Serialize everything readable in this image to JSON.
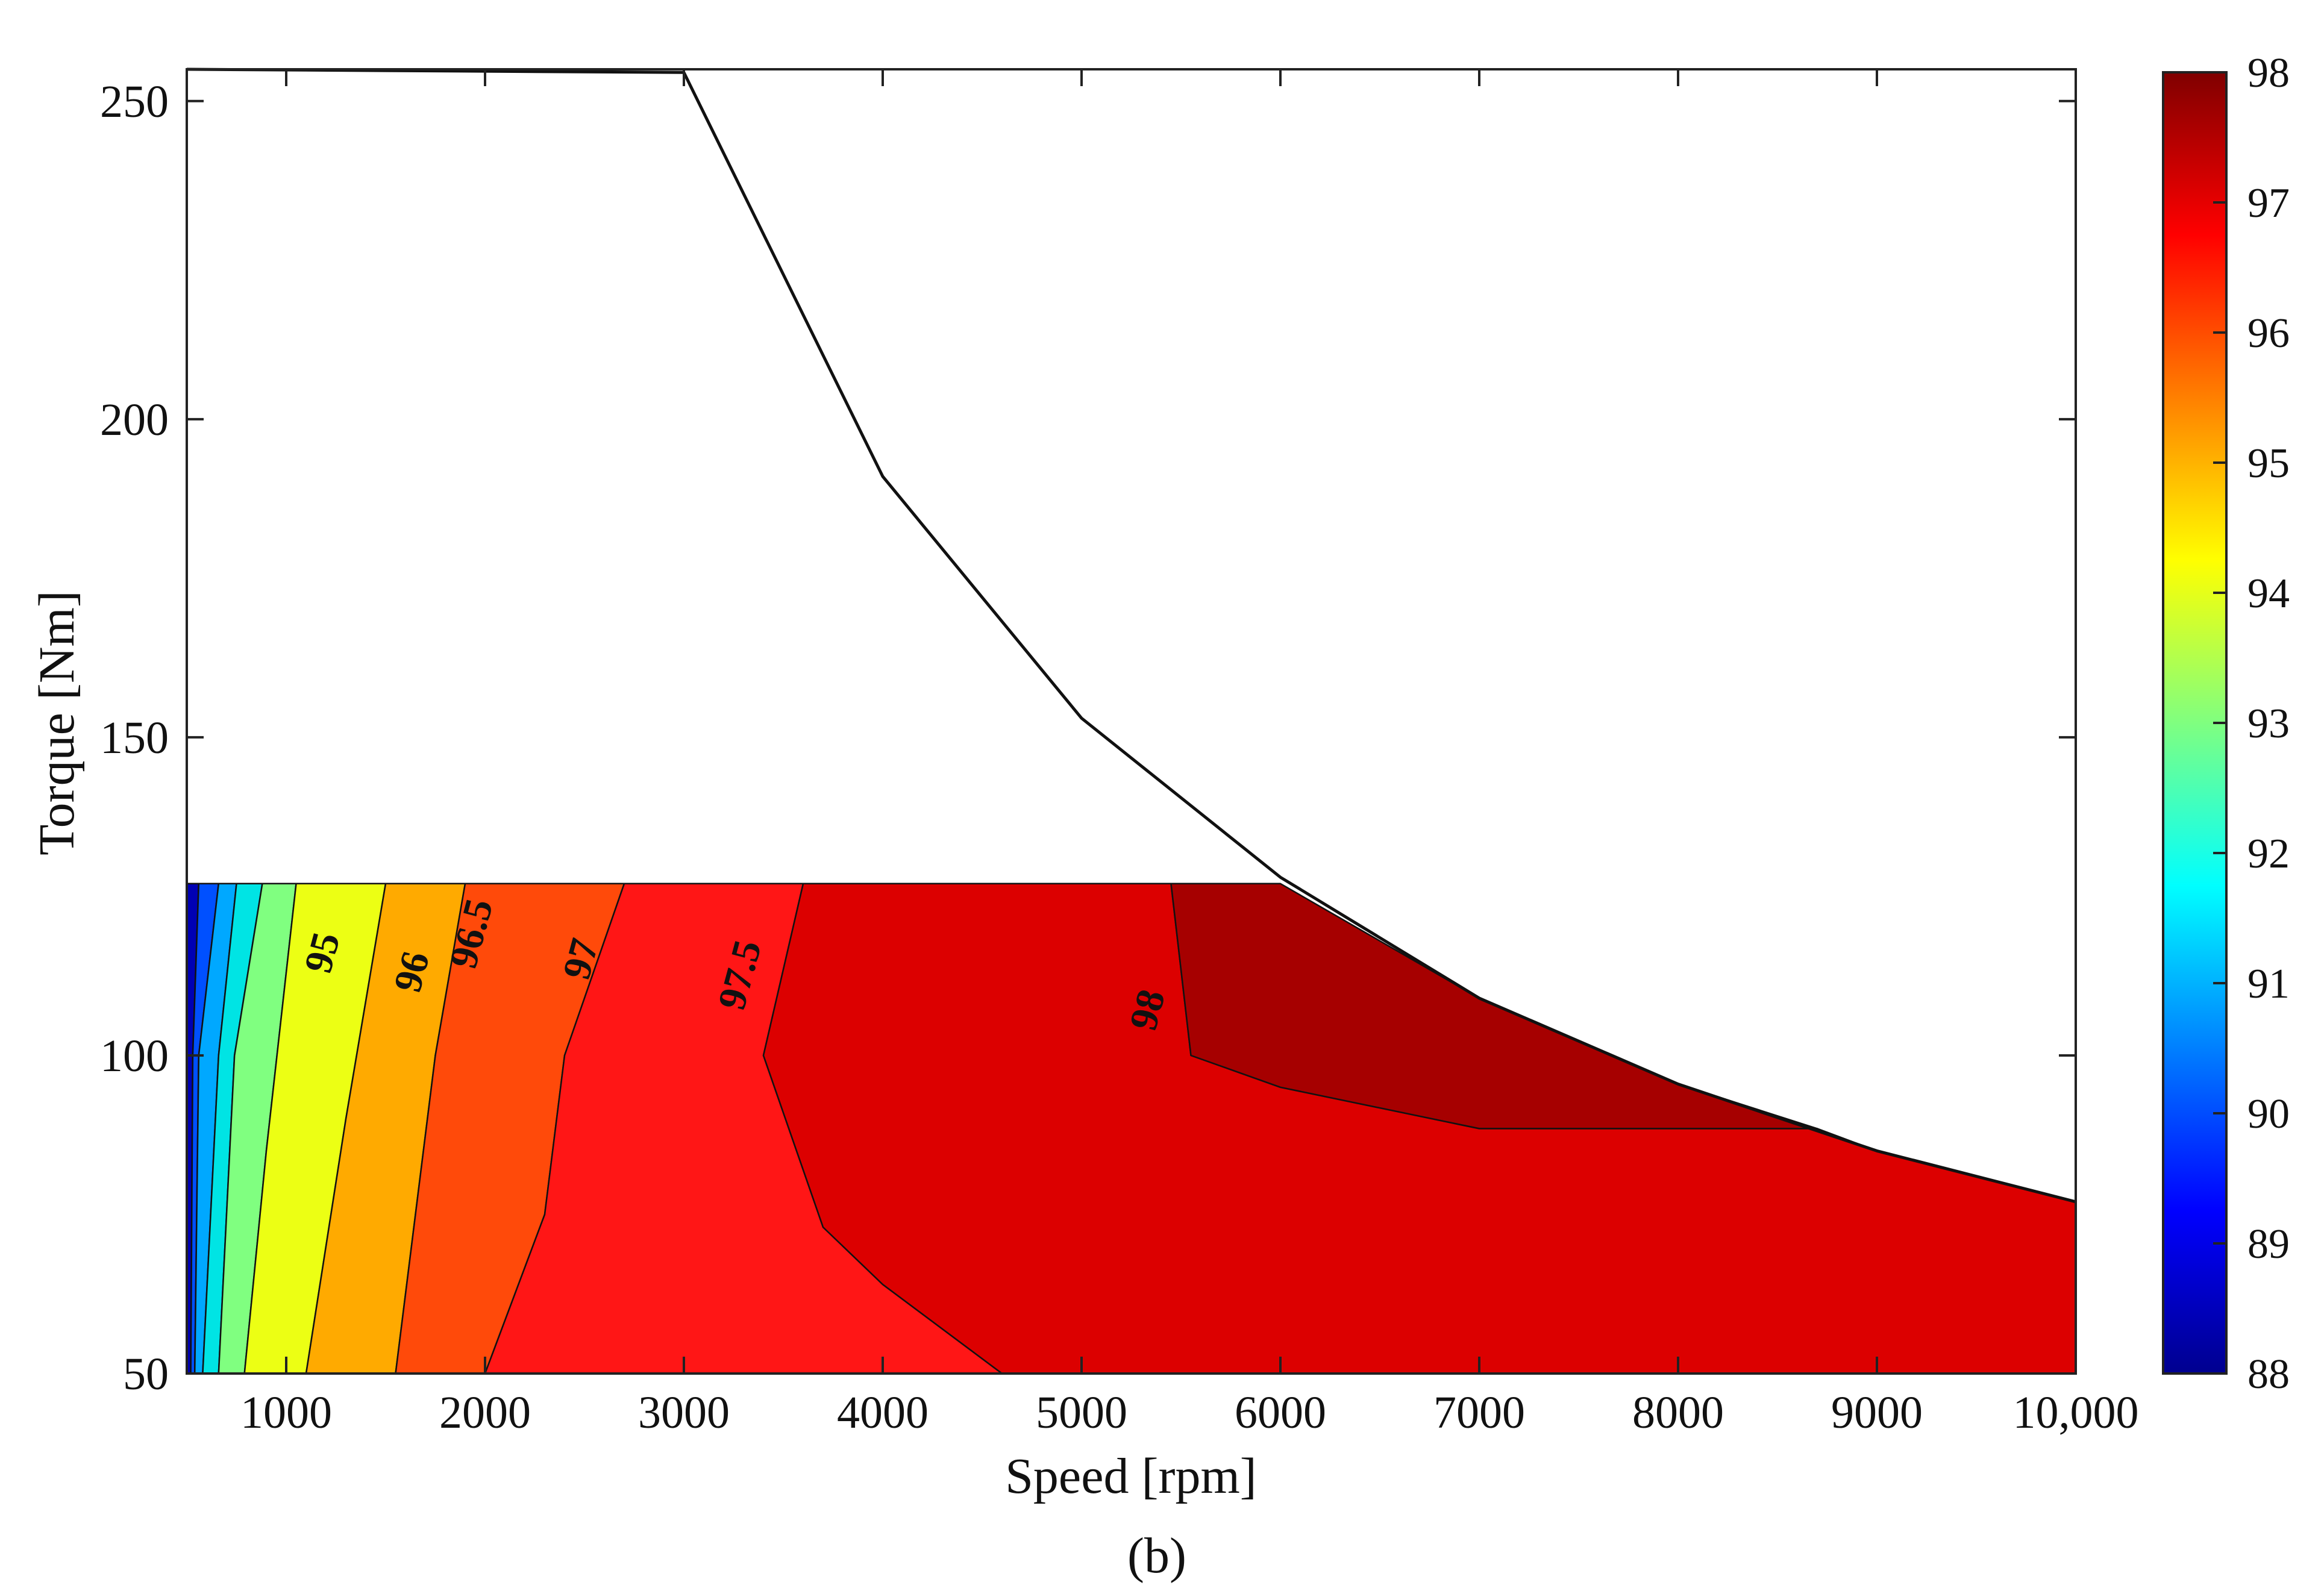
{
  "chart_data": {
    "type": "contour",
    "subplot_label": "(b)",
    "xlabel": "Speed [rpm]",
    "ylabel": "Torque [Nm]",
    "xlim": [
      500,
      10000
    ],
    "ylim": [
      50,
      255
    ],
    "xticks": [
      {
        "value": 1000,
        "label": "1000"
      },
      {
        "value": 2000,
        "label": "2000"
      },
      {
        "value": 3000,
        "label": "3000"
      },
      {
        "value": 4000,
        "label": "4000"
      },
      {
        "value": 5000,
        "label": "5000"
      },
      {
        "value": 6000,
        "label": "6000"
      },
      {
        "value": 7000,
        "label": "7000"
      },
      {
        "value": 8000,
        "label": "8000"
      },
      {
        "value": 9000,
        "label": "9000"
      },
      {
        "value": 10000,
        "label": "10,000"
      }
    ],
    "yticks": [
      {
        "value": 50,
        "label": "50"
      },
      {
        "value": 100,
        "label": "100"
      },
      {
        "value": 150,
        "label": "150"
      },
      {
        "value": 200,
        "label": "200"
      },
      {
        "value": 250,
        "label": "250"
      }
    ],
    "colorbar": {
      "min": 88,
      "max": 98,
      "ticks": [
        {
          "value": 88,
          "label": "88"
        },
        {
          "value": 89,
          "label": "89"
        },
        {
          "value": 90,
          "label": "90"
        },
        {
          "value": 91,
          "label": "91"
        },
        {
          "value": 92,
          "label": "92"
        },
        {
          "value": 93,
          "label": "93"
        },
        {
          "value": 94,
          "label": "94"
        },
        {
          "value": 95,
          "label": "95"
        },
        {
          "value": 96,
          "label": "96"
        },
        {
          "value": 97,
          "label": "97"
        },
        {
          "value": 98,
          "label": "98"
        }
      ]
    },
    "torque_speed_envelope": {
      "speed": [
        500,
        3000,
        4000,
        5000,
        6000,
        7000,
        8000,
        9000,
        10000
      ],
      "torque": [
        255,
        254.5,
        191,
        153,
        128,
        109,
        95.5,
        85,
        77
      ]
    },
    "data_region_top_torque": 127,
    "efficiency_regions": [
      {
        "level": 89,
        "color": "#0000b4",
        "boundary": [
          [
            500,
            127
          ],
          [
            500,
            50
          ],
          [
            520,
            50
          ],
          [
            530,
            100
          ],
          [
            560,
            127
          ]
        ]
      },
      {
        "level": 90,
        "color": "#0050ff",
        "boundary": [
          [
            500,
            50
          ],
          [
            540,
            50
          ],
          [
            560,
            100
          ],
          [
            660,
            127
          ],
          [
            560,
            127
          ],
          [
            530,
            100
          ],
          [
            520,
            50
          ]
        ]
      },
      {
        "level": 91,
        "color": "#00a8ff",
        "boundary": [
          [
            540,
            50
          ],
          [
            580,
            50
          ],
          [
            660,
            100
          ],
          [
            750,
            127
          ],
          [
            660,
            127
          ],
          [
            560,
            100
          ]
        ]
      },
      {
        "level": 92,
        "color": "#00e4e4",
        "boundary": [
          [
            580,
            50
          ],
          [
            660,
            50
          ],
          [
            740,
            100
          ],
          [
            880,
            127
          ],
          [
            750,
            127
          ],
          [
            660,
            100
          ]
        ]
      },
      {
        "level": 93,
        "color": "#80ff80",
        "boundary": [
          [
            660,
            50
          ],
          [
            790,
            50
          ],
          [
            900,
            85
          ],
          [
            1050,
            127
          ],
          [
            880,
            127
          ],
          [
            740,
            100
          ]
        ]
      },
      {
        "level": 94,
        "color": "#ecff14",
        "boundary": [
          [
            790,
            50
          ],
          [
            1100,
            50
          ],
          [
            1300,
            90
          ],
          [
            1500,
            127
          ],
          [
            1050,
            127
          ],
          [
            900,
            85
          ]
        ]
      },
      {
        "level": 95,
        "color": "#ffaa00",
        "boundary": [
          [
            1100,
            50
          ],
          [
            1550,
            50
          ],
          [
            1750,
            100
          ],
          [
            1900,
            127
          ],
          [
            1500,
            127
          ],
          [
            1300,
            90
          ]
        ]
      },
      {
        "level": 96,
        "color": "#ff4a0a",
        "boundary": [
          [
            1550,
            50
          ],
          [
            2000,
            50
          ],
          [
            2300,
            75
          ],
          [
            2400,
            100
          ],
          [
            2700,
            127
          ],
          [
            1900,
            127
          ],
          [
            1750,
            100
          ]
        ]
      },
      {
        "level": 96.5,
        "color": "#ff1616",
        "boundary": [
          [
            2000,
            50
          ],
          [
            4600,
            50
          ],
          [
            4000,
            64
          ],
          [
            3700,
            73
          ],
          [
            3400,
            100
          ],
          [
            3600,
            127
          ],
          [
            2700,
            127
          ],
          [
            2400,
            100
          ],
          [
            2300,
            75
          ]
        ]
      },
      {
        "level": 97,
        "color": "#dc0000",
        "boundary": [
          [
            4600,
            50
          ],
          [
            10000,
            50
          ],
          [
            10000,
            77
          ],
          [
            9000,
            85
          ],
          [
            8700,
            88.5
          ],
          [
            7000,
            88.5
          ],
          [
            6000,
            95
          ],
          [
            5550,
            100
          ],
          [
            5450,
            127
          ],
          [
            3600,
            127
          ],
          [
            3400,
            100
          ],
          [
            3700,
            73
          ],
          [
            4000,
            64
          ]
        ]
      },
      {
        "level": 97.5,
        "color": "#a60000",
        "boundary": [
          [
            5450,
            127
          ],
          [
            6000,
            127
          ],
          [
            7000,
            109
          ],
          [
            8000,
            95.5
          ],
          [
            8700,
            88.5
          ],
          [
            7000,
            88.5
          ],
          [
            6000,
            95
          ],
          [
            5550,
            100
          ]
        ]
      },
      {
        "level": 98,
        "color": "#7b0000",
        "boundary": []
      }
    ],
    "contour_labels": [
      {
        "text": "95",
        "speed": 1200,
        "torque": 116
      },
      {
        "text": "96",
        "speed": 1650,
        "torque": 113
      },
      {
        "text": "96.5",
        "speed": 1950,
        "torque": 119
      },
      {
        "text": "97",
        "speed": 2500,
        "torque": 115
      },
      {
        "text": "97.5",
        "speed": 3300,
        "torque": 112.5
      },
      {
        "text": "98",
        "speed": 5350,
        "torque": 107
      }
    ]
  }
}
